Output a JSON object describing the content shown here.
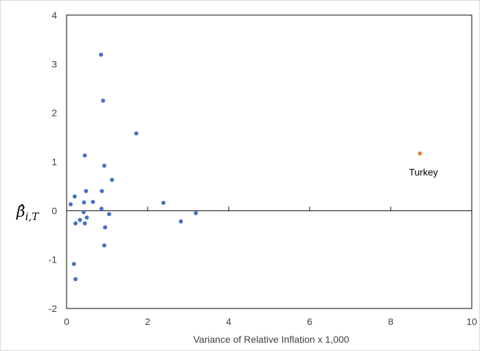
{
  "chart_data": {
    "type": "scatter",
    "title": "",
    "xlabel": "Variance of Relative Inflation x 1,000",
    "ylabel": "β̂",
    "ylabel_subscript": "i,T",
    "xlim": [
      0,
      10
    ],
    "ylim": [
      -2,
      4
    ],
    "x_ticks": [
      0,
      2,
      4,
      6,
      8,
      10
    ],
    "y_ticks": [
      -2,
      -1,
      0,
      1,
      2,
      3,
      4
    ],
    "x_tick_labels": [
      "0",
      "2",
      "4",
      "6",
      "8",
      "10"
    ],
    "y_tick_labels": [
      "-2",
      "-1",
      "0",
      "1",
      "2",
      "3",
      "4"
    ],
    "grid": false,
    "legend": false,
    "colors": {
      "main": "#4472C4",
      "highlight": "#ED7D31",
      "axis": "#000000",
      "frame": "#000000",
      "text": "#404040"
    },
    "series": [
      {
        "points": [
          [
            0.1,
            0.13
          ],
          [
            0.2,
            0.29
          ],
          [
            0.22,
            -0.26
          ],
          [
            0.18,
            -1.09
          ],
          [
            0.22,
            -1.4
          ],
          [
            0.33,
            -0.19
          ],
          [
            0.42,
            -0.03
          ],
          [
            0.43,
            0.17
          ],
          [
            0.45,
            -0.26
          ],
          [
            0.45,
            1.13
          ],
          [
            0.48,
            0.4
          ],
          [
            0.5,
            -0.14
          ],
          [
            0.65,
            0.18
          ],
          [
            0.85,
            3.19
          ],
          [
            0.86,
            0.04
          ],
          [
            0.87,
            0.4
          ],
          [
            0.9,
            2.25
          ],
          [
            0.93,
            0.92
          ],
          [
            0.93,
            -0.71
          ],
          [
            0.95,
            -0.34
          ],
          [
            1.05,
            -0.07
          ],
          [
            1.12,
            0.63
          ],
          [
            1.72,
            1.58
          ],
          [
            2.39,
            0.16
          ],
          [
            2.82,
            -0.22
          ],
          [
            3.19,
            -0.05
          ]
        ]
      },
      {
        "points": [
          [
            8.72,
            1.17
          ]
        ]
      }
    ],
    "annotations": [
      {
        "text": "Turkey",
        "x": 8.72,
        "y": 1.17
      }
    ]
  }
}
